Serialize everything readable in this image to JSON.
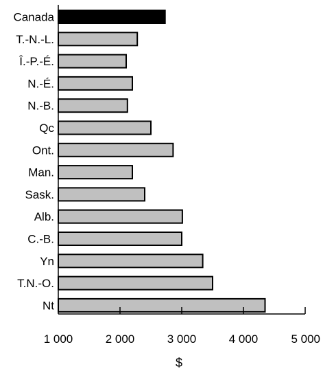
{
  "chart_data": {
    "type": "bar",
    "orientation": "horizontal",
    "categories": [
      "Canada",
      "T.-N.-L.",
      "Î.-P.-É.",
      "N.-É.",
      "N.-B.",
      "Qc",
      "Ont.",
      "Man.",
      "Sask.",
      "Alb.",
      "C.-B.",
      "Yn",
      "T.N.-O.",
      "Nt"
    ],
    "values": [
      2730,
      2280,
      2100,
      2200,
      2120,
      2500,
      2860,
      2200,
      2400,
      3010,
      3000,
      3340,
      3500,
      4350
    ],
    "highlight_category": "Canada",
    "colors": {
      "highlight": "#000000",
      "bar": "#c0c0c0",
      "bar_stroke": "#000000",
      "axis": "#000000"
    },
    "xlabel": "$",
    "ylabel": "",
    "title": "",
    "xlim": [
      1000,
      5000
    ],
    "xticks": [
      1000,
      2000,
      3000,
      4000,
      5000
    ],
    "xtick_labels": [
      "1 000",
      "2 000",
      "3 000",
      "4 000",
      "5 000"
    ],
    "grid": false,
    "legend": "none"
  }
}
